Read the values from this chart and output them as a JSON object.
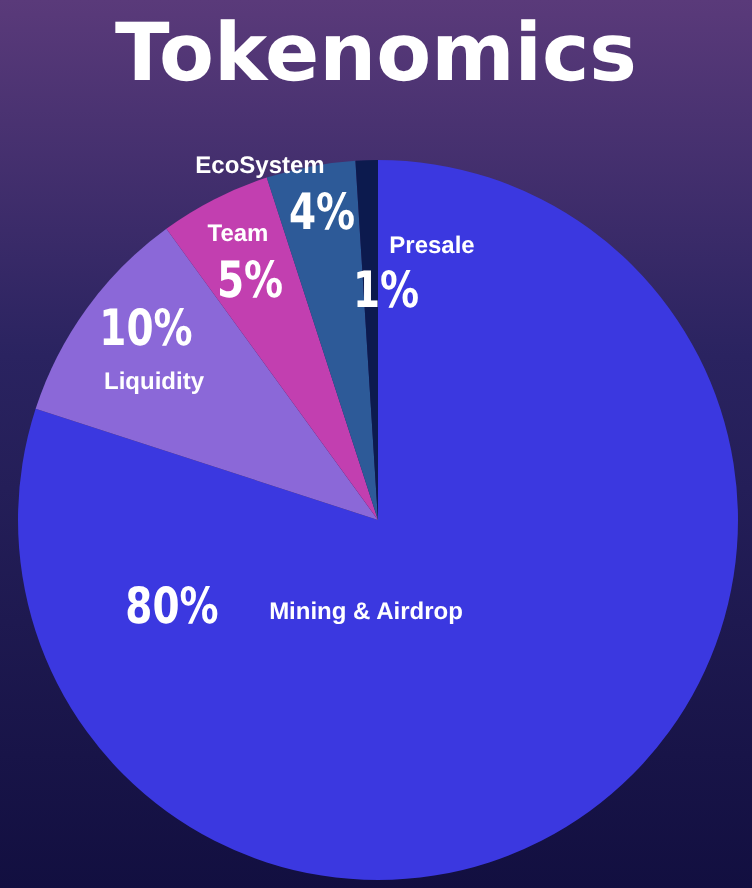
{
  "chart_data": {
    "type": "pie",
    "title": "Tokenomics",
    "categories": [
      "Mining & Airdrop",
      "Liquidity",
      "Team",
      "EcoSystem",
      "Presale"
    ],
    "values": [
      80,
      10,
      5,
      4,
      1
    ],
    "value_labels": [
      "80%",
      "10%",
      "5%",
      "4%",
      "1%"
    ],
    "colors": [
      "#3b38e0",
      "#8b68d8",
      "#c23fb0",
      "#2d5a98",
      "#0c1a4e"
    ],
    "legend": false
  }
}
